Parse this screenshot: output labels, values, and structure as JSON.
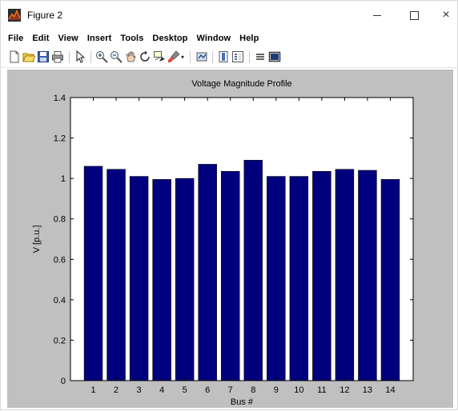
{
  "window": {
    "title": "Figure 2",
    "minimize_icon": "minimize-icon",
    "maximize_icon": "maximize-icon",
    "close_label": "×"
  },
  "menubar": {
    "items": [
      "File",
      "Edit",
      "View",
      "Insert",
      "Tools",
      "Desktop",
      "Window",
      "Help"
    ]
  },
  "toolbar": {
    "icons": [
      "new-figure-icon",
      "open-file-icon",
      "save-icon",
      "print-icon",
      "edit-plot-arrow-icon",
      "zoom-in-icon",
      "zoom-out-icon",
      "pan-icon",
      "rotate-3d-icon",
      "data-cursor-icon",
      "brush-icon",
      "link-plot-icon",
      "colorbar-icon",
      "legend-icon",
      "hide-plot-tools-icon",
      "show-plot-tools-icon"
    ]
  },
  "colors": {
    "bar": "#00007f",
    "figure_bg": "#c0c0c0",
    "axes_bg": "#ffffff"
  },
  "chart_data": {
    "type": "bar",
    "title": "Voltage Magnitude Profile",
    "xlabel": "Bus #",
    "ylabel": "V [p.u.]",
    "categories": [
      "1",
      "2",
      "3",
      "4",
      "5",
      "6",
      "7",
      "8",
      "9",
      "10",
      "11",
      "12",
      "13",
      "14"
    ],
    "values": [
      1.06,
      1.045,
      1.01,
      0.995,
      1.0,
      1.07,
      1.035,
      1.09,
      1.01,
      1.01,
      1.035,
      1.045,
      1.04,
      0.995
    ],
    "ylim": [
      0,
      1.4
    ],
    "yticks": [
      "0",
      "0.2",
      "0.4",
      "0.6",
      "0.8",
      "1",
      "1.2",
      "1.4"
    ],
    "grid": false
  }
}
